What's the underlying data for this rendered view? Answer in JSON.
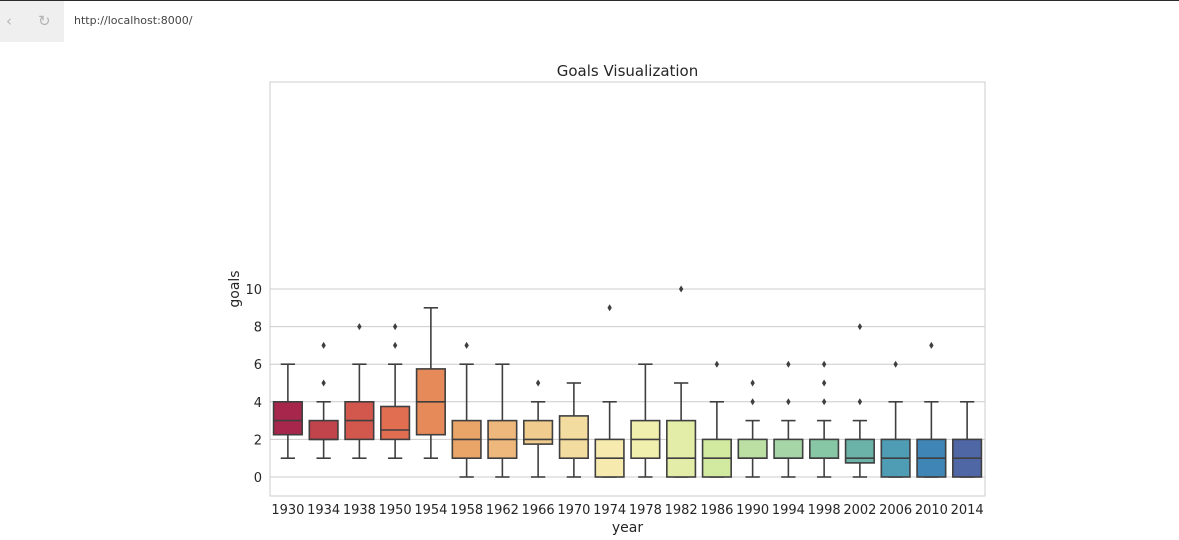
{
  "browser": {
    "back_icon": "back-chevron-icon",
    "reload_icon": "reload-icon",
    "url": "http://localhost:8000/"
  },
  "chart_data": {
    "type": "box",
    "title": "Goals Visualization",
    "xlabel": "year",
    "ylabel": "goals",
    "ylim": [
      -0.5,
      10.2
    ],
    "yticks": [
      0,
      2,
      4,
      6,
      8,
      10
    ],
    "grid": true,
    "categories": [
      "1930",
      "1934",
      "1938",
      "1950",
      "1954",
      "1958",
      "1962",
      "1966",
      "1970",
      "1974",
      "1978",
      "1982",
      "1986",
      "1990",
      "1994",
      "1998",
      "2002",
      "2006",
      "2010",
      "2014"
    ],
    "boxes": [
      {
        "q1": 2.25,
        "median": 3,
        "q3": 4,
        "whisker_low": 1,
        "whisker_high": 6,
        "outliers": [],
        "color": "#a7264b"
      },
      {
        "q1": 2,
        "median": 2,
        "q3": 3,
        "whisker_low": 1,
        "whisker_high": 4,
        "outliers": [
          5,
          7
        ],
        "color": "#c1444d"
      },
      {
        "q1": 2,
        "median": 3,
        "q3": 4,
        "whisker_low": 1,
        "whisker_high": 6,
        "outliers": [
          8
        ],
        "color": "#d2584e"
      },
      {
        "q1": 2,
        "median": 2.5,
        "q3": 3.75,
        "whisker_low": 1,
        "whisker_high": 6,
        "outliers": [
          7,
          8
        ],
        "color": "#e16e51"
      },
      {
        "q1": 2.25,
        "median": 4,
        "q3": 5.75,
        "whisker_low": 1,
        "whisker_high": 9,
        "outliers": [],
        "color": "#e68a5a"
      },
      {
        "q1": 1,
        "median": 2,
        "q3": 3,
        "whisker_low": 0,
        "whisker_high": 6,
        "outliers": [
          7
        ],
        "color": "#e9a468"
      },
      {
        "q1": 1,
        "median": 2,
        "q3": 3,
        "whisker_low": 0,
        "whisker_high": 6,
        "outliers": [],
        "color": "#eeb77b"
      },
      {
        "q1": 1.75,
        "median": 2,
        "q3": 3,
        "whisker_low": 0,
        "whisker_high": 4,
        "outliers": [
          5
        ],
        "color": "#f0cd8e"
      },
      {
        "q1": 1,
        "median": 2,
        "q3": 3.25,
        "whisker_low": 0,
        "whisker_high": 5,
        "outliers": [],
        "color": "#f3dc9f"
      },
      {
        "q1": 0,
        "median": 1,
        "q3": 2,
        "whisker_low": 0,
        "whisker_high": 4,
        "outliers": [
          9
        ],
        "color": "#f6eaae"
      },
      {
        "q1": 1,
        "median": 2,
        "q3": 3,
        "whisker_low": 0,
        "whisker_high": 6,
        "outliers": [],
        "color": "#f1efad"
      },
      {
        "q1": 0,
        "median": 1,
        "q3": 3,
        "whisker_low": 0,
        "whisker_high": 5,
        "outliers": [
          10
        ],
        "color": "#e3eda8"
      },
      {
        "q1": 0,
        "median": 1,
        "q3": 2,
        "whisker_low": 0,
        "whisker_high": 4,
        "outliers": [
          6
        ],
        "color": "#d2e9a0"
      },
      {
        "q1": 1,
        "median": 1,
        "q3": 2,
        "whisker_low": 0,
        "whisker_high": 3,
        "outliers": [
          4,
          5
        ],
        "color": "#bce0a3"
      },
      {
        "q1": 1,
        "median": 1,
        "q3": 2,
        "whisker_low": 0,
        "whisker_high": 3,
        "outliers": [
          4,
          6
        ],
        "color": "#a6d6a8"
      },
      {
        "q1": 1,
        "median": 1,
        "q3": 2,
        "whisker_low": 0,
        "whisker_high": 3,
        "outliers": [
          4,
          5,
          6
        ],
        "color": "#87c7a5"
      },
      {
        "q1": 0.75,
        "median": 1,
        "q3": 2,
        "whisker_low": 0,
        "whisker_high": 3,
        "outliers": [
          4,
          8
        ],
        "color": "#6bb2a8"
      },
      {
        "q1": 0,
        "median": 1,
        "q3": 2,
        "whisker_low": 0,
        "whisker_high": 4,
        "outliers": [
          6
        ],
        "color": "#4e9db4"
      },
      {
        "q1": 0,
        "median": 1,
        "q3": 2,
        "whisker_low": 0,
        "whisker_high": 4,
        "outliers": [
          7
        ],
        "color": "#3f85b6"
      },
      {
        "q1": 0,
        "median": 1,
        "q3": 2,
        "whisker_low": 0,
        "whisker_high": 4,
        "outliers": [],
        "color": "#5067a6"
      }
    ]
  }
}
